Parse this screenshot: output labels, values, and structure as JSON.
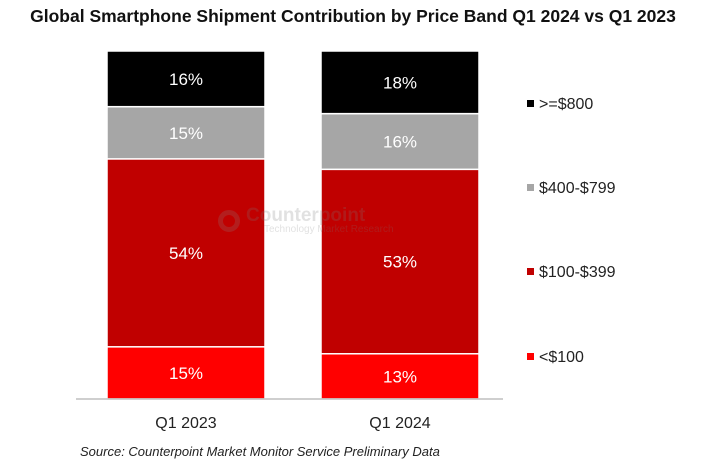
{
  "chart_data": {
    "type": "bar",
    "stacked": true,
    "title": "Global Smartphone Shipment Contribution by Price Band Q1 2024 vs Q1 2023",
    "categories": [
      "Q1 2023",
      "Q1 2024"
    ],
    "series": [
      {
        "name": "<$100",
        "color": "#ff0000",
        "values": [
          15,
          13
        ],
        "labels": [
          "15%",
          "13%"
        ]
      },
      {
        "name": "$100-$399",
        "color": "#c00000",
        "values": [
          54,
          53
        ],
        "labels": [
          "54%",
          "53%"
        ]
      },
      {
        "name": "$400-$799",
        "color": "#a6a6a6",
        "values": [
          15,
          16
        ],
        "labels": [
          "15%",
          "16%"
        ]
      },
      {
        "name": ">=$800",
        "color": "#000000",
        "values": [
          16,
          18
        ],
        "labels": [
          "16%",
          "18%"
        ]
      }
    ],
    "legend_order": [
      ">=$800",
      "$400-$799",
      "$100-$399",
      "<$100"
    ],
    "legend_placement": "right",
    "ylim": [
      0,
      100
    ],
    "grid": false,
    "source": "Source: Counterpoint Market Monitor Service Preliminary Data",
    "watermark": {
      "main": "Counterpoint",
      "sub": "Technology Market Research"
    }
  }
}
